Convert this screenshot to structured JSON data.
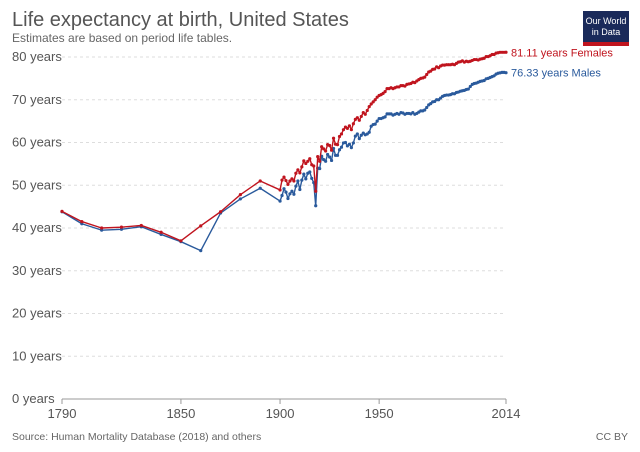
{
  "header": {
    "title": "Life expectancy at birth, United States",
    "subtitle": "Estimates are based on period life tables."
  },
  "logo": {
    "line1": "Our World",
    "line2": "in Data"
  },
  "footer": {
    "source": "Source: Human Mortality Database (2018) and others",
    "license": "CC BY"
  },
  "colors": {
    "females": "#c0141e",
    "males": "#2a5a9c",
    "grid": "#dddddd",
    "logo_bg": "#1a2a5a",
    "logo_bar": "#c0141e"
  },
  "chart_data": {
    "type": "line",
    "title": "Life expectancy at birth, United States",
    "subtitle": "Estimates are based on period life tables.",
    "xlim": [
      1790,
      2014
    ],
    "ylim": [
      0,
      80
    ],
    "x_ticks": [
      "1790",
      "1850",
      "1900",
      "1950",
      "2014"
    ],
    "y_ticks": [
      "0 years",
      "10 years",
      "20 years",
      "30 years",
      "40 years",
      "50 years",
      "60 years",
      "70 years",
      "80 years"
    ],
    "grid": "horizontal dashed",
    "series": [
      {
        "name": "Females",
        "end_label": "81.11 years Females",
        "color": "#c0141e",
        "points": [
          [
            1790,
            43.9
          ],
          [
            1800,
            41.5
          ],
          [
            1810,
            40.0
          ],
          [
            1820,
            40.2
          ],
          [
            1830,
            40.6
          ],
          [
            1840,
            39.0
          ],
          [
            1850,
            37.0
          ],
          [
            1860,
            40.5
          ],
          [
            1870,
            43.8
          ],
          [
            1880,
            47.8
          ],
          [
            1890,
            51.0
          ],
          [
            1900,
            48.9
          ],
          [
            1901,
            51.2
          ],
          [
            1902,
            51.9
          ],
          [
            1903,
            51.1
          ],
          [
            1904,
            50.2
          ],
          [
            1905,
            51.0
          ],
          [
            1906,
            51.5
          ],
          [
            1907,
            51.0
          ],
          [
            1908,
            52.8
          ],
          [
            1909,
            53.6
          ],
          [
            1910,
            52.9
          ],
          [
            1911,
            54.3
          ],
          [
            1912,
            55.7
          ],
          [
            1913,
            55.1
          ],
          [
            1914,
            55.6
          ],
          [
            1915,
            56.2
          ],
          [
            1916,
            54.8
          ],
          [
            1917,
            54.5
          ],
          [
            1918,
            48.6
          ],
          [
            1919,
            56.7
          ],
          [
            1920,
            55.6
          ],
          [
            1921,
            59.0
          ],
          [
            1922,
            58.5
          ],
          [
            1923,
            58.0
          ],
          [
            1924,
            59.5
          ],
          [
            1925,
            59.3
          ],
          [
            1926,
            58.2
          ],
          [
            1927,
            61.0
          ],
          [
            1928,
            59.6
          ],
          [
            1929,
            59.5
          ],
          [
            1930,
            61.4
          ],
          [
            1931,
            62.0
          ],
          [
            1932,
            63.0
          ],
          [
            1933,
            63.6
          ],
          [
            1934,
            63.3
          ],
          [
            1935,
            63.9
          ],
          [
            1936,
            63.0
          ],
          [
            1937,
            64.4
          ],
          [
            1938,
            65.4
          ],
          [
            1939,
            65.8
          ],
          [
            1940,
            65.2
          ],
          [
            1941,
            66.1
          ],
          [
            1942,
            67.0
          ],
          [
            1943,
            66.6
          ],
          [
            1944,
            67.5
          ],
          [
            1945,
            68.4
          ],
          [
            1946,
            69.0
          ],
          [
            1947,
            69.5
          ],
          [
            1948,
            70.0
          ],
          [
            1949,
            70.6
          ],
          [
            1950,
            71.0
          ],
          [
            1951,
            71.2
          ],
          [
            1952,
            71.5
          ],
          [
            1953,
            71.9
          ],
          [
            1954,
            72.6
          ],
          [
            1955,
            72.6
          ],
          [
            1956,
            72.8
          ],
          [
            1957,
            72.6
          ],
          [
            1958,
            72.8
          ],
          [
            1959,
            73.0
          ],
          [
            1960,
            73.0
          ],
          [
            1961,
            73.3
          ],
          [
            1962,
            73.3
          ],
          [
            1963,
            73.2
          ],
          [
            1964,
            73.6
          ],
          [
            1965,
            73.7
          ],
          [
            1966,
            73.8
          ],
          [
            1967,
            74.1
          ],
          [
            1968,
            74.0
          ],
          [
            1969,
            74.4
          ],
          [
            1970,
            74.7
          ],
          [
            1971,
            75.0
          ],
          [
            1972,
            75.1
          ],
          [
            1973,
            75.3
          ],
          [
            1974,
            75.9
          ],
          [
            1975,
            76.5
          ],
          [
            1976,
            76.7
          ],
          [
            1977,
            77.1
          ],
          [
            1978,
            77.2
          ],
          [
            1979,
            77.7
          ],
          [
            1980,
            77.5
          ],
          [
            1981,
            77.9
          ],
          [
            1982,
            78.1
          ],
          [
            1983,
            78.1
          ],
          [
            1984,
            78.2
          ],
          [
            1985,
            78.2
          ],
          [
            1986,
            78.2
          ],
          [
            1987,
            78.3
          ],
          [
            1988,
            78.2
          ],
          [
            1989,
            78.5
          ],
          [
            1990,
            78.8
          ],
          [
            1991,
            78.9
          ],
          [
            1992,
            79.1
          ],
          [
            1993,
            78.8
          ],
          [
            1994,
            79.0
          ],
          [
            1995,
            78.9
          ],
          [
            1996,
            79.0
          ],
          [
            1997,
            79.2
          ],
          [
            1998,
            79.4
          ],
          [
            1999,
            79.4
          ],
          [
            2000,
            79.3
          ],
          [
            2001,
            79.5
          ],
          [
            2002,
            79.6
          ],
          [
            2003,
            79.7
          ],
          [
            2004,
            80.1
          ],
          [
            2005,
            80.1
          ],
          [
            2006,
            80.3
          ],
          [
            2007,
            80.6
          ],
          [
            2008,
            80.6
          ],
          [
            2009,
            80.9
          ],
          [
            2010,
            81.0
          ],
          [
            2011,
            81.1
          ],
          [
            2012,
            81.1
          ],
          [
            2013,
            81.1
          ],
          [
            2014,
            81.11
          ]
        ]
      },
      {
        "name": "Males",
        "end_label": "76.33 years Males",
        "color": "#2a5a9c",
        "points": [
          [
            1790,
            43.8
          ],
          [
            1800,
            41.0
          ],
          [
            1810,
            39.5
          ],
          [
            1820,
            39.7
          ],
          [
            1830,
            40.3
          ],
          [
            1840,
            38.5
          ],
          [
            1850,
            36.8
          ],
          [
            1860,
            34.7
          ],
          [
            1870,
            43.5
          ],
          [
            1880,
            46.8
          ],
          [
            1890,
            49.3
          ],
          [
            1900,
            46.3
          ],
          [
            1901,
            47.6
          ],
          [
            1902,
            49.2
          ],
          [
            1903,
            48.4
          ],
          [
            1904,
            46.9
          ],
          [
            1905,
            48.0
          ],
          [
            1906,
            48.6
          ],
          [
            1907,
            47.9
          ],
          [
            1908,
            49.8
          ],
          [
            1909,
            51.0
          ],
          [
            1910,
            49.0
          ],
          [
            1911,
            51.2
          ],
          [
            1912,
            52.6
          ],
          [
            1913,
            51.5
          ],
          [
            1914,
            52.8
          ],
          [
            1915,
            53.1
          ],
          [
            1916,
            51.6
          ],
          [
            1917,
            50.6
          ],
          [
            1918,
            45.2
          ],
          [
            1919,
            54.0
          ],
          [
            1920,
            53.9
          ],
          [
            1921,
            56.8
          ],
          [
            1922,
            56.0
          ],
          [
            1923,
            55.6
          ],
          [
            1924,
            57.2
          ],
          [
            1925,
            56.6
          ],
          [
            1926,
            55.8
          ],
          [
            1927,
            58.6
          ],
          [
            1928,
            57.0
          ],
          [
            1929,
            57.0
          ],
          [
            1930,
            58.3
          ],
          [
            1931,
            58.9
          ],
          [
            1932,
            59.9
          ],
          [
            1933,
            60.0
          ],
          [
            1934,
            59.2
          ],
          [
            1935,
            59.6
          ],
          [
            1936,
            58.8
          ],
          [
            1937,
            59.9
          ],
          [
            1938,
            61.5
          ],
          [
            1939,
            62.0
          ],
          [
            1940,
            60.9
          ],
          [
            1941,
            61.7
          ],
          [
            1942,
            62.2
          ],
          [
            1943,
            61.8
          ],
          [
            1944,
            62.0
          ],
          [
            1945,
            62.4
          ],
          [
            1946,
            63.8
          ],
          [
            1947,
            64.2
          ],
          [
            1948,
            64.3
          ],
          [
            1949,
            65.0
          ],
          [
            1950,
            65.6
          ],
          [
            1951,
            65.6
          ],
          [
            1952,
            65.8
          ],
          [
            1953,
            66.0
          ],
          [
            1954,
            66.7
          ],
          [
            1955,
            66.7
          ],
          [
            1956,
            66.7
          ],
          [
            1957,
            66.4
          ],
          [
            1958,
            66.6
          ],
          [
            1959,
            66.8
          ],
          [
            1960,
            66.6
          ],
          [
            1961,
            67.0
          ],
          [
            1962,
            66.9
          ],
          [
            1963,
            66.6
          ],
          [
            1964,
            66.8
          ],
          [
            1965,
            66.8
          ],
          [
            1966,
            66.7
          ],
          [
            1967,
            67.0
          ],
          [
            1968,
            66.6
          ],
          [
            1969,
            66.8
          ],
          [
            1970,
            67.1
          ],
          [
            1971,
            67.4
          ],
          [
            1972,
            67.4
          ],
          [
            1973,
            67.6
          ],
          [
            1974,
            68.2
          ],
          [
            1975,
            68.8
          ],
          [
            1976,
            69.1
          ],
          [
            1977,
            69.5
          ],
          [
            1978,
            69.6
          ],
          [
            1979,
            70.0
          ],
          [
            1980,
            70.0
          ],
          [
            1981,
            70.4
          ],
          [
            1982,
            70.8
          ],
          [
            1983,
            71.0
          ],
          [
            1984,
            71.1
          ],
          [
            1985,
            71.1
          ],
          [
            1986,
            71.2
          ],
          [
            1987,
            71.4
          ],
          [
            1988,
            71.4
          ],
          [
            1989,
            71.7
          ],
          [
            1990,
            71.8
          ],
          [
            1991,
            72.0
          ],
          [
            1992,
            72.1
          ],
          [
            1993,
            72.2
          ],
          [
            1994,
            72.4
          ],
          [
            1995,
            72.5
          ],
          [
            1996,
            73.1
          ],
          [
            1997,
            73.6
          ],
          [
            1998,
            73.8
          ],
          [
            1999,
            73.9
          ],
          [
            2000,
            74.1
          ],
          [
            2001,
            74.3
          ],
          [
            2002,
            74.4
          ],
          [
            2003,
            74.5
          ],
          [
            2004,
            74.9
          ],
          [
            2005,
            75.0
          ],
          [
            2006,
            75.2
          ],
          [
            2007,
            75.4
          ],
          [
            2008,
            75.6
          ],
          [
            2009,
            76.0
          ],
          [
            2010,
            76.2
          ],
          [
            2011,
            76.3
          ],
          [
            2012,
            76.4
          ],
          [
            2013,
            76.4
          ],
          [
            2014,
            76.33
          ]
        ]
      }
    ]
  }
}
